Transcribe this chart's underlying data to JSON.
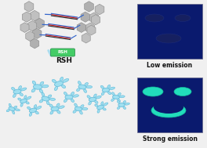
{
  "bg_color": "#f0f0f0",
  "panel_bg": "#0a1a6e",
  "low_label": "Low emission",
  "high_label": "Strong emission",
  "arrow_color": "#aaddee",
  "rsh_color": "#44cc66",
  "rsh_label": "RSH",
  "hex_color": "#c0c0c0",
  "hex_edge": "#888888",
  "blob_fill": "#a0dff0",
  "blob_edge": "#5ab8d8",
  "line_blue": "#3366cc",
  "line_red": "#cc2222",
  "line_dark": "#333333",
  "dim_shape": "#1a2a7a",
  "dim_edge": "#2a3a9a",
  "bright_shape": "#22ddbb",
  "bright_edge": "#11bb99"
}
